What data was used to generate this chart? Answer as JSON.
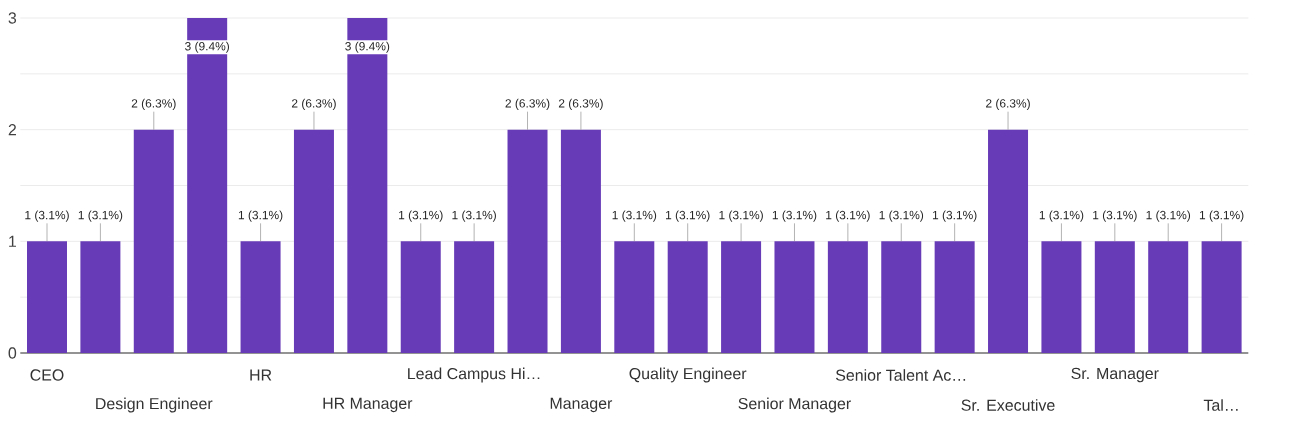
{
  "chart_data": {
    "type": "bar",
    "categories": [
      "CEO",
      null,
      "Design Engineer",
      null,
      "HR",
      null,
      "HR Manager",
      null,
      "Lead Campus Hi…",
      null,
      "Manager",
      null,
      "Quality Engineer",
      null,
      "Senior Manager",
      null,
      "Senior Talent Ac…",
      null,
      "Sr. Executive",
      null,
      "Sr. Manager",
      null,
      "Tal…"
    ],
    "values": [
      1,
      1,
      2,
      3,
      1,
      2,
      3,
      1,
      1,
      2,
      2,
      1,
      1,
      1,
      1,
      1,
      1,
      1,
      2,
      1,
      1,
      1,
      1
    ],
    "value_labels": [
      "1 (3.1%)",
      "1 (3.1%)",
      "2 (6.3%)",
      "3 (9.4%)",
      "1 (3.1%)",
      "2 (6.3%)",
      "3 (9.4%)",
      "1 (3.1%)",
      "1 (3.1%)",
      "2 (6.3%)",
      "2 (6.3%)",
      "1 (3.1%)",
      "1 (3.1%)",
      "1 (3.1%)",
      "1 (3.1%)",
      "1 (3.1%)",
      "1 (3.1%)",
      "1 (3.1%)",
      "2 (6.3%)",
      "1 (3.1%)",
      "1 (3.1%)",
      "1 (3.1%)",
      "1 (3.1%)"
    ],
    "color": "#673ab7",
    "ylim": [
      0,
      3
    ],
    "yticks": [
      0,
      {
        "value": 0.5,
        "label": null
      },
      1,
      {
        "value": 1.5,
        "label": null
      },
      2,
      {
        "value": 2.5,
        "label": null
      },
      3
    ],
    "grid": "y"
  }
}
